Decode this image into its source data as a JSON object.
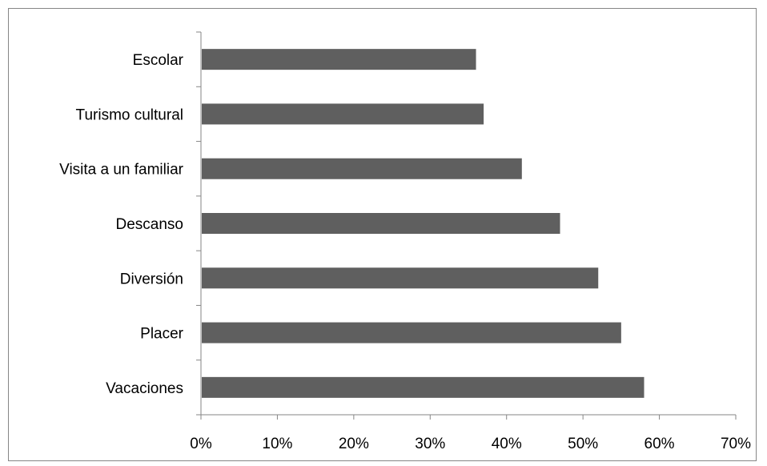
{
  "chart_data": {
    "type": "bar",
    "orientation": "horizontal",
    "categories": [
      "Escolar",
      "Turismo cultural",
      "Visita a un familiar",
      "Descanso",
      "Diversión",
      "Placer",
      "Vacaciones"
    ],
    "values": [
      36,
      37,
      42,
      47,
      52,
      55,
      58
    ],
    "xlim": [
      0,
      70
    ],
    "x_ticks": [
      0,
      10,
      20,
      30,
      40,
      50,
      60,
      70
    ],
    "x_tick_labels": [
      "0%",
      "10%",
      "20%",
      "30%",
      "40%",
      "50%",
      "60%",
      "70%"
    ],
    "bar_color": "#5f5f5f",
    "grid": false,
    "legend": "none"
  }
}
